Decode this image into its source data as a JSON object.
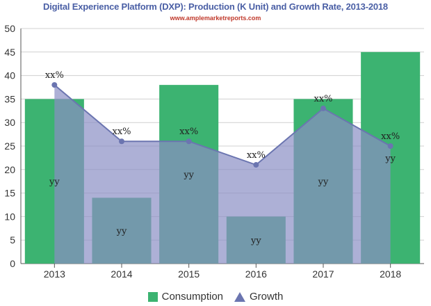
{
  "chart_data": {
    "type": "bar",
    "title": "Digital Experience Platform (DXP): Production (K Unit) and Growth Rate, 2013-2018",
    "subtitle": "www.amplemarketreports.com",
    "categories": [
      "2013",
      "2014",
      "2015",
      "2016",
      "2017",
      "2018"
    ],
    "ylim": [
      0,
      50
    ],
    "yticks": [
      0,
      5,
      10,
      15,
      20,
      25,
      30,
      35,
      40,
      45,
      50
    ],
    "grid": true,
    "legend_position": "bottom",
    "series": [
      {
        "name": "Consumption",
        "type": "bar",
        "values": [
          35,
          14,
          38,
          10,
          35,
          45
        ],
        "labels": [
          "yy",
          "yy",
          "yy",
          "yy",
          "yy",
          "yy"
        ],
        "color": "#3cb371"
      },
      {
        "name": "Growth",
        "type": "area",
        "values": [
          38,
          26,
          26,
          21,
          33,
          25
        ],
        "labels": [
          "xx%",
          "xx%",
          "xx%",
          "xx%",
          "xx%",
          "xx%"
        ],
        "color": "#8a8fc4",
        "line_color": "#6b75b0"
      }
    ]
  }
}
